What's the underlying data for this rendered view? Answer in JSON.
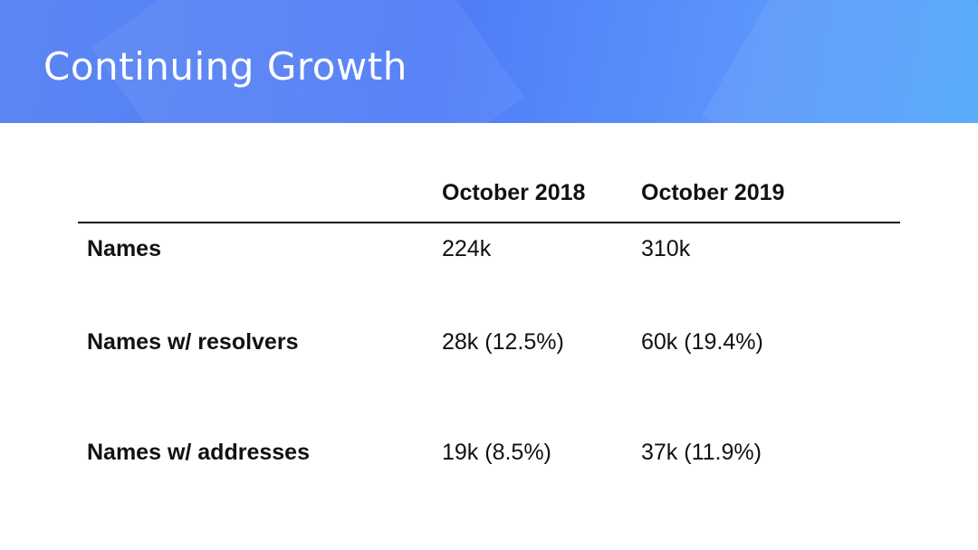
{
  "slide": {
    "title": "Continuing Growth"
  },
  "table": {
    "headers": [
      "",
      "October 2018",
      "October 2019"
    ],
    "rows": [
      {
        "label": "Names",
        "oct2018": "224k",
        "oct2019": "310k"
      },
      {
        "label": "Names w/ resolvers",
        "oct2018": "28k (12.5%)",
        "oct2019": "60k (19.4%)"
      },
      {
        "label": "Names w/ addresses",
        "oct2018": "19k (8.5%)",
        "oct2019": "37k (11.9%)"
      }
    ]
  },
  "colors": {
    "header_gradient_start": "#5c86f2",
    "header_gradient_end": "#4fa6fb",
    "text": "#111111",
    "title_text": "#ffffff"
  }
}
